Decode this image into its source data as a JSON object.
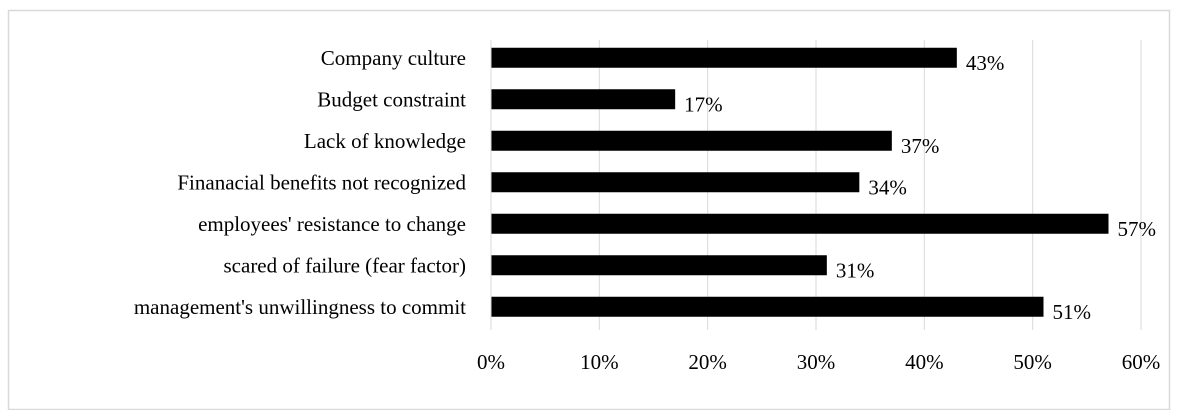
{
  "chart_data": {
    "type": "bar",
    "orientation": "horizontal",
    "categories": [
      "Company culture",
      "Budget constraint",
      "Lack of knowledge",
      "Finanacial benefits not recognized",
      "employees' resistance to change",
      "scared of failure (fear factor)",
      "management's unwillingness to commit"
    ],
    "values": [
      0.43,
      0.17,
      0.37,
      0.34,
      0.57,
      0.31,
      0.51
    ],
    "data_labels": [
      "43%",
      "17%",
      "37%",
      "34%",
      "57%",
      "31%",
      "51%"
    ],
    "xlim": [
      0,
      0.6
    ],
    "x_ticks": [
      0,
      0.1,
      0.2,
      0.3,
      0.4,
      0.5,
      0.6
    ],
    "x_tick_labels": [
      "0%",
      "10%",
      "20%",
      "30%",
      "40%",
      "50%",
      "60%"
    ],
    "grid": "vertical",
    "legend": "none",
    "bar_color": "#000000",
    "grid_color": "#d9d9d9",
    "border_color": "#d9d9d9"
  }
}
